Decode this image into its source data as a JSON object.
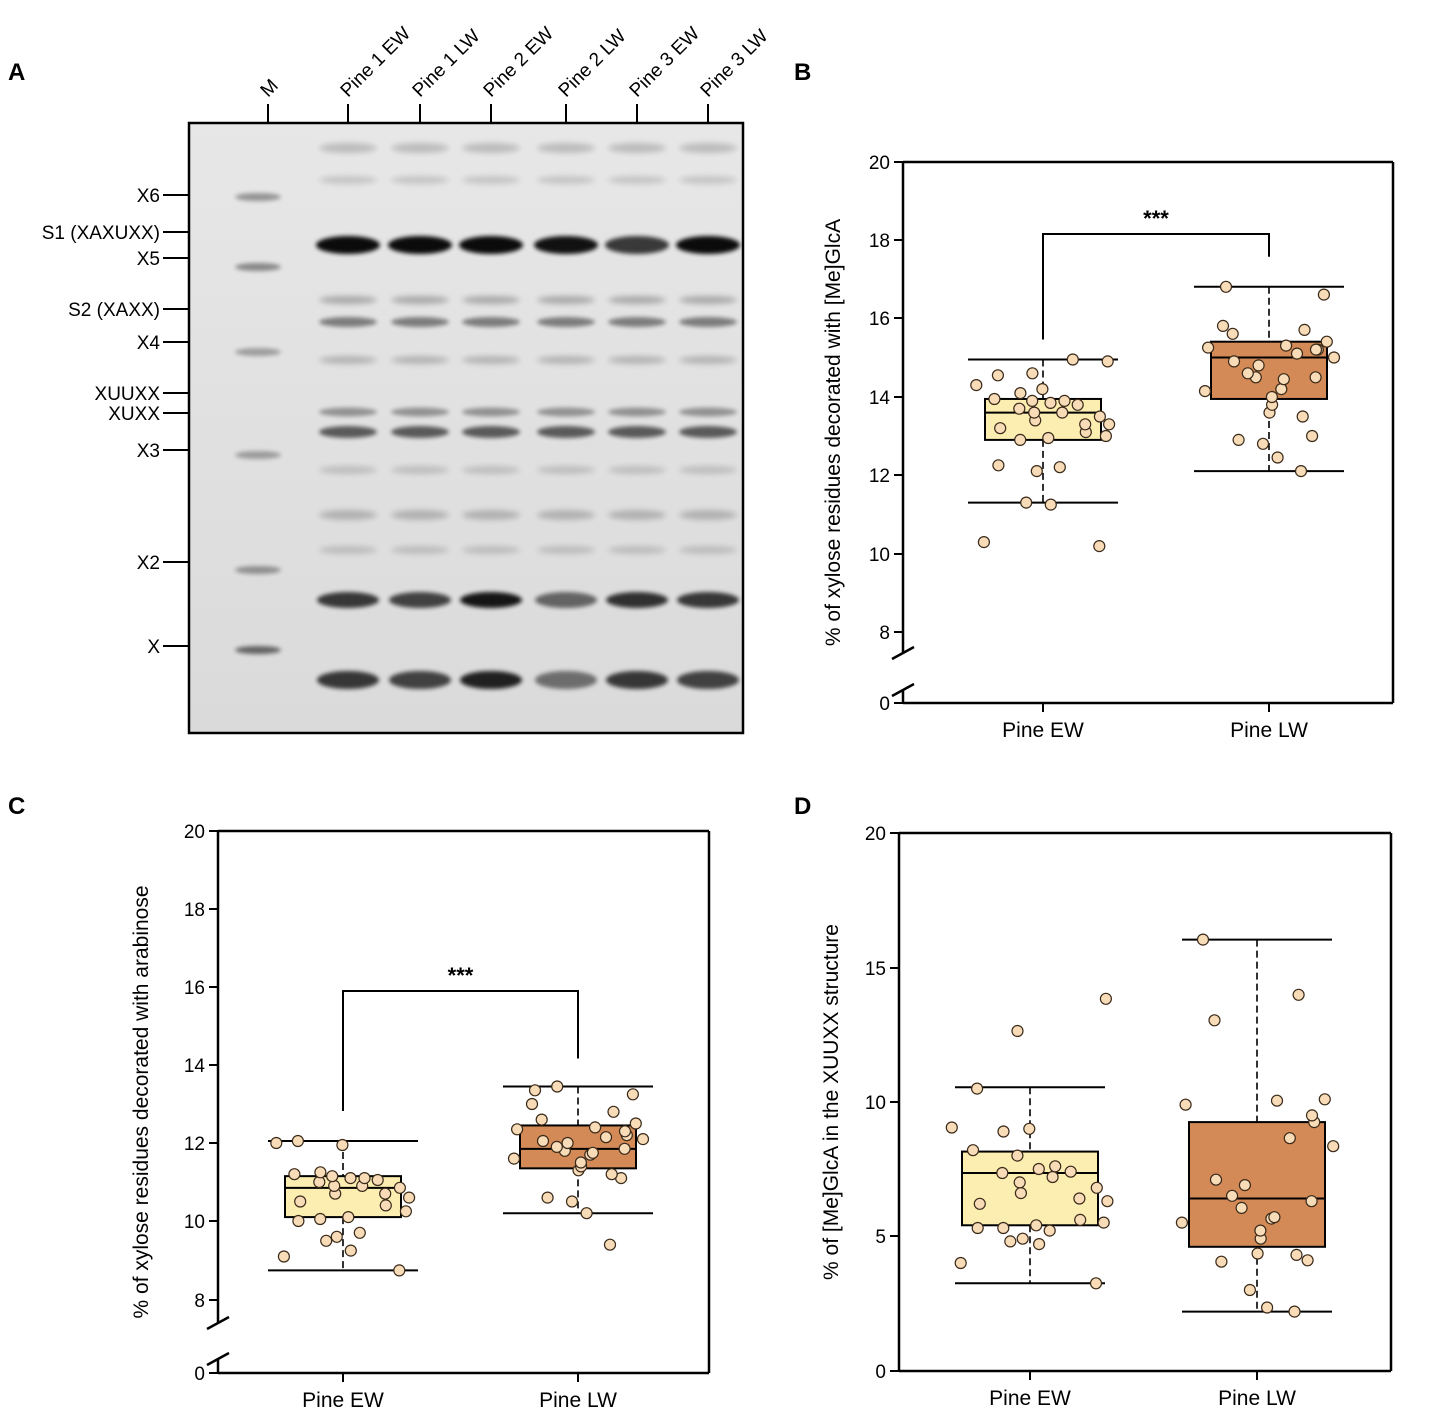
{
  "figure": {
    "panel_letters": [
      "A",
      "B",
      "C",
      "D"
    ],
    "gel": {
      "lanes": [
        "M",
        "Pine 1 EW",
        "Pine 1 LW",
        "Pine 2 EW",
        "Pine 2 LW",
        "Pine 3 EW",
        "Pine 3 LW"
      ],
      "markers": [
        "X6",
        "S1 (XAXUXX)",
        "X5",
        "S2 (XAXX)",
        "X4",
        "XUUXX",
        "XUXX",
        "X3",
        "X2",
        "X"
      ]
    }
  },
  "chart_data": [
    {
      "panel": "B",
      "type": "box",
      "categories": [
        "Pine EW",
        "Pine LW"
      ],
      "ylabel": "% of  xylose residues decorated with [Me]GlcA",
      "ylim": [
        0,
        20
      ],
      "yticks": [
        "0",
        "8",
        "10",
        "12",
        "14",
        "16",
        "18",
        "20"
      ],
      "axis_break": true,
      "significance": "***",
      "colors": {
        "fill": [
          "#fbeeb0",
          "#d38a56"
        ],
        "point": "#f8dcb8"
      },
      "boxes": [
        {
          "name": "Pine EW",
          "whisker_low": 11.3,
          "q1": 12.9,
          "median": 13.6,
          "q3": 13.95,
          "whisker_high": 14.95,
          "points": [
            10.2,
            10.3,
            11.25,
            11.3,
            12.1,
            12.2,
            12.25,
            12.9,
            12.95,
            13.0,
            13.1,
            13.2,
            13.3,
            13.3,
            13.4,
            13.5,
            13.6,
            13.6,
            13.7,
            13.8,
            13.85,
            13.9,
            13.9,
            13.95,
            14.1,
            14.2,
            14.3,
            14.55,
            14.6,
            14.9,
            14.95
          ]
        },
        {
          "name": "Pine LW",
          "whisker_low": 12.1,
          "q1": 13.95,
          "median": 15.0,
          "q3": 15.4,
          "whisker_high": 16.8,
          "points": [
            12.1,
            12.45,
            12.8,
            12.9,
            13.0,
            13.5,
            13.6,
            13.8,
            14.0,
            14.15,
            14.2,
            14.45,
            14.5,
            14.5,
            14.6,
            14.8,
            14.9,
            15.0,
            15.1,
            15.2,
            15.2,
            15.25,
            15.3,
            15.4,
            15.6,
            15.7,
            15.8,
            16.6,
            16.8
          ]
        }
      ]
    },
    {
      "panel": "C",
      "type": "box",
      "categories": [
        "Pine EW",
        "Pine LW"
      ],
      "ylabel": "% of  xylose residues decorated with arabinose",
      "ylim": [
        0,
        20
      ],
      "yticks": [
        "0",
        "8",
        "10",
        "12",
        "14",
        "16",
        "18",
        "20"
      ],
      "axis_break": true,
      "significance": "***",
      "colors": {
        "fill": [
          "#fbeeb0",
          "#d38a56"
        ],
        "point": "#f8dcb8"
      },
      "boxes": [
        {
          "name": "Pine EW",
          "whisker_low": 8.75,
          "q1": 10.1,
          "median": 10.85,
          "q3": 11.15,
          "whisker_high": 12.05,
          "points": [
            8.75,
            9.1,
            9.25,
            9.5,
            9.6,
            9.7,
            10.0,
            10.05,
            10.1,
            10.25,
            10.4,
            10.5,
            10.6,
            10.7,
            10.7,
            10.85,
            10.9,
            10.9,
            11.0,
            11.05,
            11.1,
            11.1,
            11.15,
            11.2,
            11.25,
            11.95,
            12.0,
            12.05
          ]
        },
        {
          "name": "Pine LW",
          "whisker_low": 10.2,
          "q1": 11.35,
          "median": 11.85,
          "q3": 12.45,
          "whisker_high": 13.45,
          "points": [
            9.4,
            10.2,
            10.5,
            10.6,
            11.1,
            11.2,
            11.3,
            11.4,
            11.5,
            11.6,
            11.7,
            11.75,
            11.8,
            11.85,
            11.9,
            12.0,
            12.05,
            12.1,
            12.15,
            12.2,
            12.3,
            12.35,
            12.4,
            12.5,
            12.6,
            12.8,
            13.0,
            13.25,
            13.35,
            13.45
          ]
        }
      ]
    },
    {
      "panel": "D",
      "type": "box",
      "categories": [
        "Pine EW",
        "Pine LW"
      ],
      "ylabel": "% of [Me]GlcA in the XUUXX structure",
      "ylim": [
        0,
        20
      ],
      "yticks": [
        "0",
        "5",
        "10",
        "15",
        "20"
      ],
      "axis_break": false,
      "significance": "",
      "colors": {
        "fill": [
          "#fbeeb0",
          "#d38a56"
        ],
        "point": "#f8dcb8"
      },
      "boxes": [
        {
          "name": "Pine EW",
          "whisker_low": 3.25,
          "q1": 5.4,
          "median": 7.35,
          "q3": 8.15,
          "whisker_high": 10.55,
          "points": [
            3.25,
            4.0,
            4.7,
            4.8,
            4.9,
            5.2,
            5.3,
            5.3,
            5.4,
            5.5,
            5.6,
            6.2,
            6.3,
            6.4,
            6.6,
            6.8,
            7.0,
            7.2,
            7.35,
            7.4,
            7.5,
            7.6,
            8.0,
            8.2,
            8.9,
            9.0,
            9.05,
            10.5,
            12.65,
            13.85
          ]
        },
        {
          "name": "Pine LW",
          "whisker_low": 2.2,
          "q1": 4.6,
          "median": 6.4,
          "q3": 9.25,
          "whisker_high": 16.05,
          "points": [
            2.2,
            2.35,
            3.0,
            4.05,
            4.1,
            4.3,
            4.35,
            4.9,
            5.2,
            5.5,
            5.65,
            5.7,
            6.05,
            6.3,
            6.5,
            6.9,
            7.1,
            8.35,
            8.65,
            9.25,
            9.5,
            9.9,
            10.05,
            10.1,
            13.05,
            14.0,
            16.05
          ]
        }
      ]
    }
  ]
}
